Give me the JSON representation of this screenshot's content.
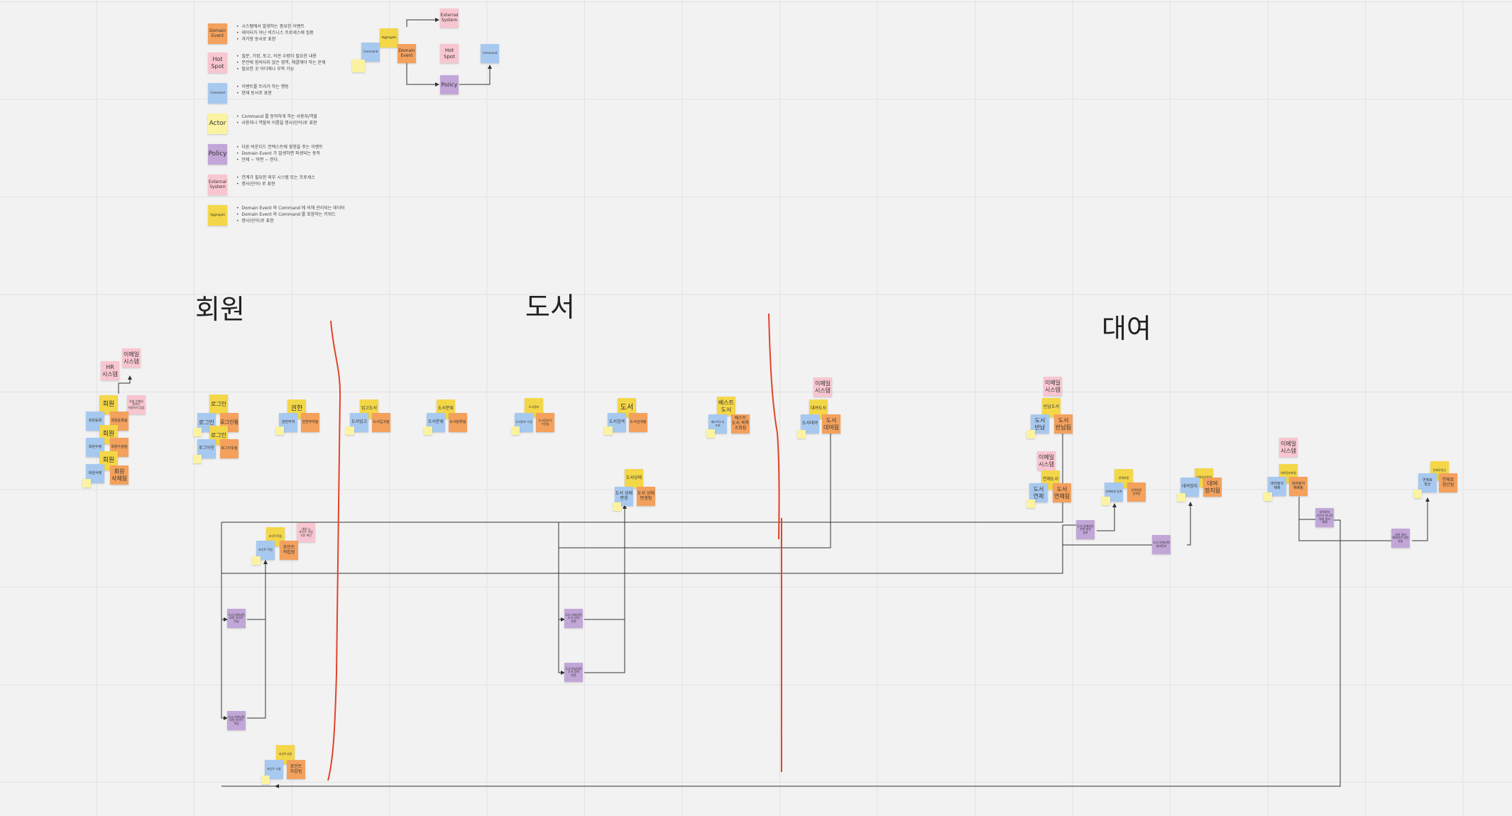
{
  "titles": {
    "member": "회원",
    "book": "도서",
    "rental": "대여"
  },
  "legend": [
    {
      "label": "Domain\nEvent",
      "color": "orange",
      "lines": [
        "•  시스템에서 발생하는 중요한 이벤트",
        "•  데이터가 아닌 비즈니스 프로세스에 집중",
        "•  과거형 동사로 표현"
      ]
    },
    {
      "label": "Hot\nSpot",
      "color": "pink",
      "lines": [
        "•  질문, 가정, 토고, 의견 수렴이 필요한 내용",
        "•  분전에 정의되지 않은 영역, 해결해야 하는 문제",
        "•  필요한 곳 어디에나 부착 가능"
      ]
    },
    {
      "label": "Command",
      "color": "blue",
      "lines": [
        "•  이벤트를 트리거 하는 행동",
        "•  현재 동사로 표현"
      ]
    },
    {
      "label": "Actor",
      "color": "lightyellow",
      "lines": [
        "•  Command 를 동작하게 하는 사용자/역할",
        "•  사용자나 역할의 이름을 명사(단어)로 표현"
      ]
    },
    {
      "label": "Policy",
      "color": "purple",
      "lines": [
        "•  다른 바운디드 컨텍스트에 영향을 주는 이벤트",
        "•  Domain Event 가 발생하면 파생되는 동작",
        "•  언제 ~ 하면 ~ 한다."
      ]
    },
    {
      "label": "External\nSystem",
      "color": "pink",
      "lines": [
        "•  연계가 필요한 외부 시스템 또는 프로세스",
        "•  명사(단어) 로 표현"
      ]
    },
    {
      "label": "Aggregate",
      "color": "yellow",
      "lines": [
        "•  Domain Event 와 Command 에 의해 관리되는 데이터",
        "•  Domain Event 와 Command 를 포함하는 키워드",
        "•  명사(단어)로 표현"
      ]
    }
  ],
  "flow_example": {
    "aggregate": "Aggregate",
    "command1": "Command",
    "event": "Domain\nEvent",
    "external": "External\nSystem",
    "hotspot": "Hot\nSpot",
    "policy": "Policy",
    "command2": "Command"
  },
  "notes": {
    "member": {
      "ext_email": "이메일\n시스템",
      "ext_hr": "HR\n시스템",
      "agg1": "회원",
      "agg2": "회원",
      "agg3": "회원",
      "cmd1": "회원등록",
      "ev1": "회원등록됨",
      "cmd2": "회원수정",
      "ev2": "회원수정됨",
      "cmd3": "회원삭제",
      "ev3": "회원\n삭제됨",
      "hot1": "회원 이메일 중복은 허용하지 않음"
    },
    "login": {
      "agg1": "로그인",
      "cmd1": "로그인",
      "ev1": "로그인됨",
      "agg2": "로그인",
      "cmd2": "로그아웃",
      "ev2": "로그아웃됨"
    },
    "perm": {
      "agg": "권한",
      "cmd": "권한부여",
      "ev": "권한부여됨"
    },
    "stock": {
      "agg": "입고도서",
      "cmd": "도서입고",
      "ev": "도서입고됨"
    },
    "bookreg": {
      "agg": "도서분류",
      "cmd": "도서분류",
      "ev": "도서분류됨"
    },
    "bookinfo": {
      "agg": "도서정보",
      "cmd": "도서정보 수정",
      "ev": "도서정보가 수정됨"
    },
    "book": {
      "agg": "도서",
      "cmd": "도서검색",
      "ev": "도서검색됨"
    },
    "bookstate": {
      "agg": "도서상태",
      "cmd": "도서 상태 변경",
      "ev": "도서 상태 변경됨"
    },
    "best": {
      "agg": "베스트\n도서",
      "cmd": "베스트도서 조회",
      "ev": "베스트\n도서 목록\n조회됨"
    },
    "rentbook": {
      "ext": "이메일\n시스템",
      "agg": "대여도서",
      "cmd": "도서대여",
      "ev": "도서\n대여됨"
    },
    "returnbook": {
      "ext": "이메일\n시스템",
      "agg": "반납도서",
      "cmd": "도서\n반납",
      "ev": "도서\n반납됨"
    },
    "overdue": {
      "ext": "이메일\n시스템",
      "agg": "연체도서",
      "cmd": "도서\n연체",
      "ev": "도서\n연체됨"
    },
    "overdue_agg": {
      "agg": "연체회원",
      "cmd": "연체회원 등록",
      "ev": "연체회원 등록됨"
    },
    "suspend": {
      "agg": "대여정지회원",
      "cmd": "대여정지",
      "ev": "대여\n정지됨"
    },
    "rental_ext2": {
      "ext": "이메일\n시스템",
      "agg": "대여정지회원",
      "cmd": "대여정지 해제",
      "ev": "대여정지 해제됨"
    },
    "penalty": {
      "agg": "연체료정산",
      "cmd": "연체료 정산",
      "ev": "연체료\n정산됨"
    },
    "points": {
      "agg": "포인트적립",
      "cmd": "포인트 적립",
      "ev": "포인트\n적립됨",
      "hot": "대여 시 포인트 적립 기준 확인"
    },
    "points2": {
      "agg": "포인트사용",
      "cmd": "포인트 사용",
      "ev": "포인트\n차감됨"
    },
    "policies": {
      "p1": "도서 대여되면 회원 포인트 적립",
      "p2": "도서 대여되면 회원 포인트 적립",
      "p3": "도서 대여되면 도서 상태 변경",
      "p4": "도서 반납되면 도서 상태 변경",
      "p5": "도서 연체되면 연체 회원 등록",
      "p6": "도서 연체되면 대여정지",
      "p7": "대여정지 기간이 지나면 대여 정지 해제",
      "p8": "대여 정지 해제되면 알림 발송"
    }
  }
}
